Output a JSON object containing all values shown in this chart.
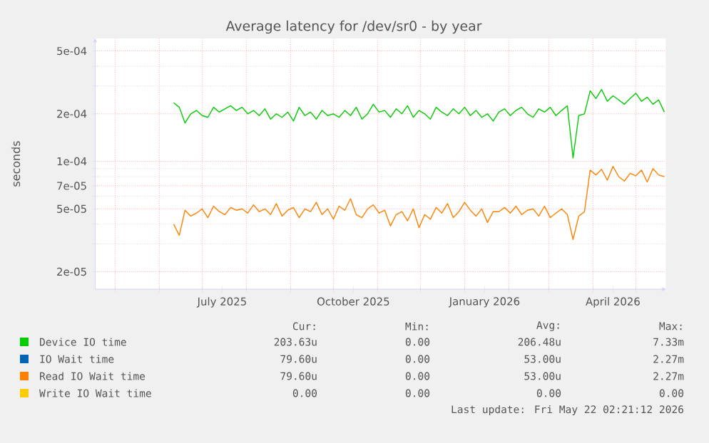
{
  "chart_data": {
    "type": "line",
    "title": "Average latency for /dev/sr0 - by year",
    "ylabel": "seconds",
    "log": "y",
    "grid": true,
    "legend": "bottom",
    "xlim": [
      "2025-04-17",
      "2026-05-22"
    ],
    "xticks": [
      {
        "value": "2025-07-15",
        "label": "July 2025"
      },
      {
        "value": "2025-10-15",
        "label": "October 2025"
      },
      {
        "value": "2026-01-15",
        "label": "January 2026"
      },
      {
        "value": "2026-04-15",
        "label": "April 2026"
      },
      {
        "value": "2025-05-01",
        "label": null
      },
      {
        "value": "2025-06-01",
        "label": null
      },
      {
        "value": "2025-07-01",
        "label": null
      },
      {
        "value": "2025-08-01",
        "label": null
      },
      {
        "value": "2025-09-01",
        "label": null
      },
      {
        "value": "2025-10-01",
        "label": null
      },
      {
        "value": "2025-11-01",
        "label": null
      },
      {
        "value": "2025-12-01",
        "label": null
      },
      {
        "value": "2026-01-01",
        "label": null
      },
      {
        "value": "2026-02-01",
        "label": null
      },
      {
        "value": "2026-03-01",
        "label": null
      },
      {
        "value": "2026-04-01",
        "label": null
      },
      {
        "value": "2026-05-01",
        "label": null
      }
    ],
    "ylim": [
      1.55e-05,
      0.0006
    ],
    "yticks": [
      {
        "value": 2e-05,
        "label": "2e-05"
      },
      {
        "value": 5e-05,
        "label": "5e-05"
      },
      {
        "value": 7e-05,
        "label": "7e-05"
      },
      {
        "value": 0.0001,
        "label": "1e-04"
      },
      {
        "value": 0.0002,
        "label": "2e-04"
      },
      {
        "value": 0.0005,
        "label": "5e-04"
      },
      {
        "value": 3e-05,
        "label": null
      },
      {
        "value": 4e-05,
        "label": null
      },
      {
        "value": 6e-05,
        "label": null
      },
      {
        "value": 8e-05,
        "label": null
      },
      {
        "value": 9e-05,
        "label": null
      },
      {
        "value": 0.0003,
        "label": null
      },
      {
        "value": 0.0004,
        "label": null
      }
    ],
    "x": [
      "2025-06-11",
      "2025-06-15",
      "2025-06-19",
      "2025-06-23",
      "2025-06-27",
      "2025-07-01",
      "2025-07-05",
      "2025-07-09",
      "2025-07-13",
      "2025-07-17",
      "2025-07-21",
      "2025-07-25",
      "2025-07-29",
      "2025-08-02",
      "2025-08-06",
      "2025-08-10",
      "2025-08-14",
      "2025-08-18",
      "2025-08-22",
      "2025-08-26",
      "2025-08-30",
      "2025-09-03",
      "2025-09-07",
      "2025-09-11",
      "2025-09-15",
      "2025-09-19",
      "2025-09-23",
      "2025-09-27",
      "2025-10-01",
      "2025-10-05",
      "2025-10-09",
      "2025-10-13",
      "2025-10-17",
      "2025-10-21",
      "2025-10-25",
      "2025-10-29",
      "2025-11-02",
      "2025-11-06",
      "2025-11-10",
      "2025-11-14",
      "2025-11-18",
      "2025-11-22",
      "2025-11-26",
      "2025-11-30",
      "2025-12-04",
      "2025-12-08",
      "2025-12-12",
      "2025-12-16",
      "2025-12-20",
      "2025-12-24",
      "2025-12-28",
      "2026-01-01",
      "2026-01-05",
      "2026-01-09",
      "2026-01-13",
      "2026-01-17",
      "2026-01-21",
      "2026-01-25",
      "2026-01-29",
      "2026-02-02",
      "2026-02-06",
      "2026-02-10",
      "2026-02-14",
      "2026-02-18",
      "2026-02-22",
      "2026-02-26",
      "2026-03-02",
      "2026-03-06",
      "2026-03-10",
      "2026-03-14",
      "2026-03-18",
      "2026-03-22",
      "2026-03-26",
      "2026-03-30",
      "2026-04-03",
      "2026-04-07",
      "2026-04-11",
      "2026-04-15",
      "2026-04-19",
      "2026-04-23",
      "2026-04-27",
      "2026-05-01",
      "2026-05-05",
      "2026-05-09",
      "2026-05-13",
      "2026-05-17",
      "2026-05-21"
    ],
    "series": [
      {
        "name": "Device IO time",
        "color": "#00cc00",
        "values": [
          0.000235,
          0.00022,
          0.000175,
          0.0002,
          0.00021,
          0.000195,
          0.00019,
          0.00022,
          0.000205,
          0.000215,
          0.000225,
          0.00021,
          0.00022,
          0.0002,
          0.00021,
          0.000195,
          0.000215,
          0.000185,
          0.0002,
          0.00019,
          0.000205,
          0.00018,
          0.00022,
          0.000195,
          0.000205,
          0.000185,
          0.00021,
          0.000195,
          0.0002,
          0.00019,
          0.00021,
          0.000195,
          0.00022,
          0.000185,
          0.0002,
          0.00023,
          0.000205,
          0.00021,
          0.00019,
          0.000215,
          0.0002,
          0.000225,
          0.00019,
          0.00021,
          0.0002,
          0.000185,
          0.00022,
          0.000205,
          0.000195,
          0.000215,
          0.0002,
          0.00022,
          0.000195,
          0.00021,
          0.00019,
          0.0002,
          0.00018,
          0.000205,
          0.000215,
          0.000195,
          0.00021,
          0.00022,
          0.0002,
          0.00019,
          0.000215,
          0.000205,
          0.00022,
          0.000195,
          0.00021,
          0.000225,
          0.000105,
          0.000195,
          0.0002,
          0.00028,
          0.00025,
          0.000285,
          0.00024,
          0.00026,
          0.000245,
          0.00023,
          0.00025,
          0.00027,
          0.00024,
          0.000255,
          0.00023,
          0.000245,
          0.000205
        ]
      },
      {
        "name": "IO Wait time",
        "color": "#0066b3",
        "values": [
          null,
          null,
          null,
          null,
          null,
          null,
          null,
          null,
          null,
          null,
          null,
          null,
          null,
          null,
          null,
          null,
          null,
          null,
          null,
          null,
          null,
          null,
          null,
          null,
          null,
          null,
          null,
          null,
          null,
          null,
          null,
          null,
          null,
          null,
          null,
          null,
          null,
          null,
          null,
          null,
          null,
          null,
          null,
          null,
          null,
          null,
          null,
          null,
          null,
          null,
          null,
          null,
          null,
          null,
          null,
          null,
          null,
          null,
          null,
          null,
          null,
          null,
          null,
          null,
          null,
          null,
          null,
          null,
          null,
          null,
          null,
          null,
          null,
          null,
          null,
          null,
          null,
          null,
          null,
          null,
          null,
          null,
          null,
          null,
          null,
          null,
          null
        ]
      },
      {
        "name": "Read IO Wait time",
        "color": "#ff8000",
        "values": [
          4e-05,
          3.4e-05,
          4.9e-05,
          4.5e-05,
          4.7e-05,
          5e-05,
          4.4e-05,
          5.2e-05,
          4.8e-05,
          4.6e-05,
          5.1e-05,
          4.9e-05,
          5e-05,
          4.7e-05,
          5.3e-05,
          4.8e-05,
          5e-05,
          4.6e-05,
          5.4e-05,
          4.5e-05,
          4.9e-05,
          5.1e-05,
          4.4e-05,
          5e-05,
          4.8e-05,
          5.5e-05,
          4.6e-05,
          5e-05,
          4.3e-05,
          5.2e-05,
          4.9e-05,
          5.8e-05,
          4.6e-05,
          4.4e-05,
          5e-05,
          5.3e-05,
          4.7e-05,
          4.9e-05,
          3.9e-05,
          4.6e-05,
          4.8e-05,
          4.2e-05,
          5e-05,
          3.8e-05,
          4.6e-05,
          4.3e-05,
          5.1e-05,
          4.7e-05,
          5.4e-05,
          4.4e-05,
          4.8e-05,
          5.5e-05,
          4.9e-05,
          4.5e-05,
          5e-05,
          4.1e-05,
          4.8e-05,
          4.8e-05,
          5.1e-05,
          4.7e-05,
          5.2e-05,
          4.6e-05,
          4.9e-05,
          5e-05,
          4.5e-05,
          5.2e-05,
          4.4e-05,
          4.7e-05,
          5e-05,
          4.6e-05,
          3.2e-05,
          4.5e-05,
          4.8e-05,
          8.8e-05,
          8.2e-05,
          8.9e-05,
          7.6e-05,
          9.3e-05,
          8e-05,
          7.5e-05,
          8.4e-05,
          8.1e-05,
          8.8e-05,
          7.4e-05,
          9e-05,
          8.2e-05,
          8e-05
        ]
      },
      {
        "name": "Write IO Wait time",
        "color": "#ffcc00",
        "values": [
          null,
          null,
          null,
          null,
          null,
          null,
          null,
          null,
          null,
          null,
          null,
          null,
          null,
          null,
          null,
          null,
          null,
          null,
          null,
          null,
          null,
          null,
          null,
          null,
          null,
          null,
          null,
          null,
          null,
          null,
          null,
          null,
          null,
          null,
          null,
          null,
          null,
          null,
          null,
          null,
          null,
          null,
          null,
          null,
          null,
          null,
          null,
          null,
          null,
          null,
          null,
          null,
          null,
          null,
          null,
          null,
          null,
          null,
          null,
          null,
          null,
          null,
          null,
          null,
          null,
          null,
          null,
          null,
          null,
          null,
          null,
          null,
          null,
          null,
          null,
          null,
          null,
          null,
          null,
          null,
          null,
          null,
          null,
          null,
          null,
          null,
          null
        ]
      }
    ],
    "annotations": [
      "Cur:",
      "Min:",
      "Avg:",
      "Max:",
      "203.63u",
      "0.00",
      "206.48u",
      "7.33m",
      "79.60u",
      "0.00",
      "53.00u",
      "2.27m",
      "79.60u",
      "0.00",
      "53.00u",
      "2.27m",
      "0.00",
      "0.00",
      "0.00",
      "0.00",
      "Last update: Fri May 22 02:21:12 2026"
    ]
  }
}
